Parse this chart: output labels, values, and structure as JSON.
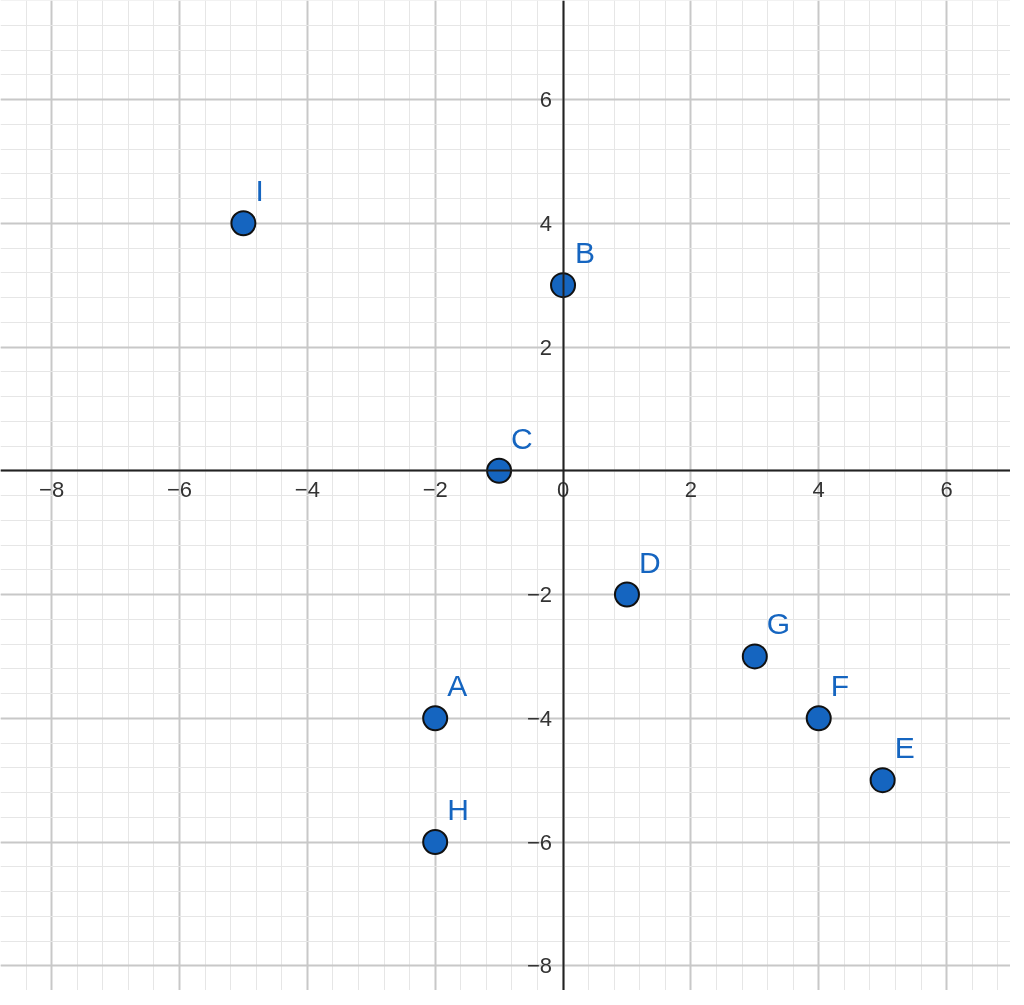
{
  "chart_data": {
    "type": "scatter",
    "series": [
      {
        "color": "#1565c0",
        "values": [
          -4,
          3,
          0,
          -2,
          -5,
          -4,
          -3,
          -6,
          4
        ],
        "x": [
          -2,
          0,
          -1,
          1,
          5,
          4,
          3,
          -2,
          -5
        ]
      }
    ],
    "annotations": [
      {
        "text": "A",
        "x": -2,
        "y": -4
      },
      {
        "text": "B",
        "x": 0,
        "y": 3
      },
      {
        "text": "C",
        "x": -1,
        "y": 0
      },
      {
        "text": "D",
        "x": 1,
        "y": -2
      },
      {
        "text": "E",
        "x": 5,
        "y": -5
      },
      {
        "text": "F",
        "x": 4,
        "y": -4
      },
      {
        "text": "G",
        "x": 3,
        "y": -3
      },
      {
        "text": "H",
        "x": -2,
        "y": -6
      },
      {
        "text": "I",
        "x": -5,
        "y": 4
      }
    ],
    "xlim": [
      -8.8,
      7
    ],
    "ylim": [
      -8.4,
      7.6
    ],
    "xticks": [
      -8,
      -6,
      -4,
      -2,
      0,
      2,
      4,
      6
    ],
    "yticks": [
      -8,
      -6,
      -4,
      -2,
      2,
      4,
      6
    ],
    "grid": true,
    "marker": "circle"
  }
}
